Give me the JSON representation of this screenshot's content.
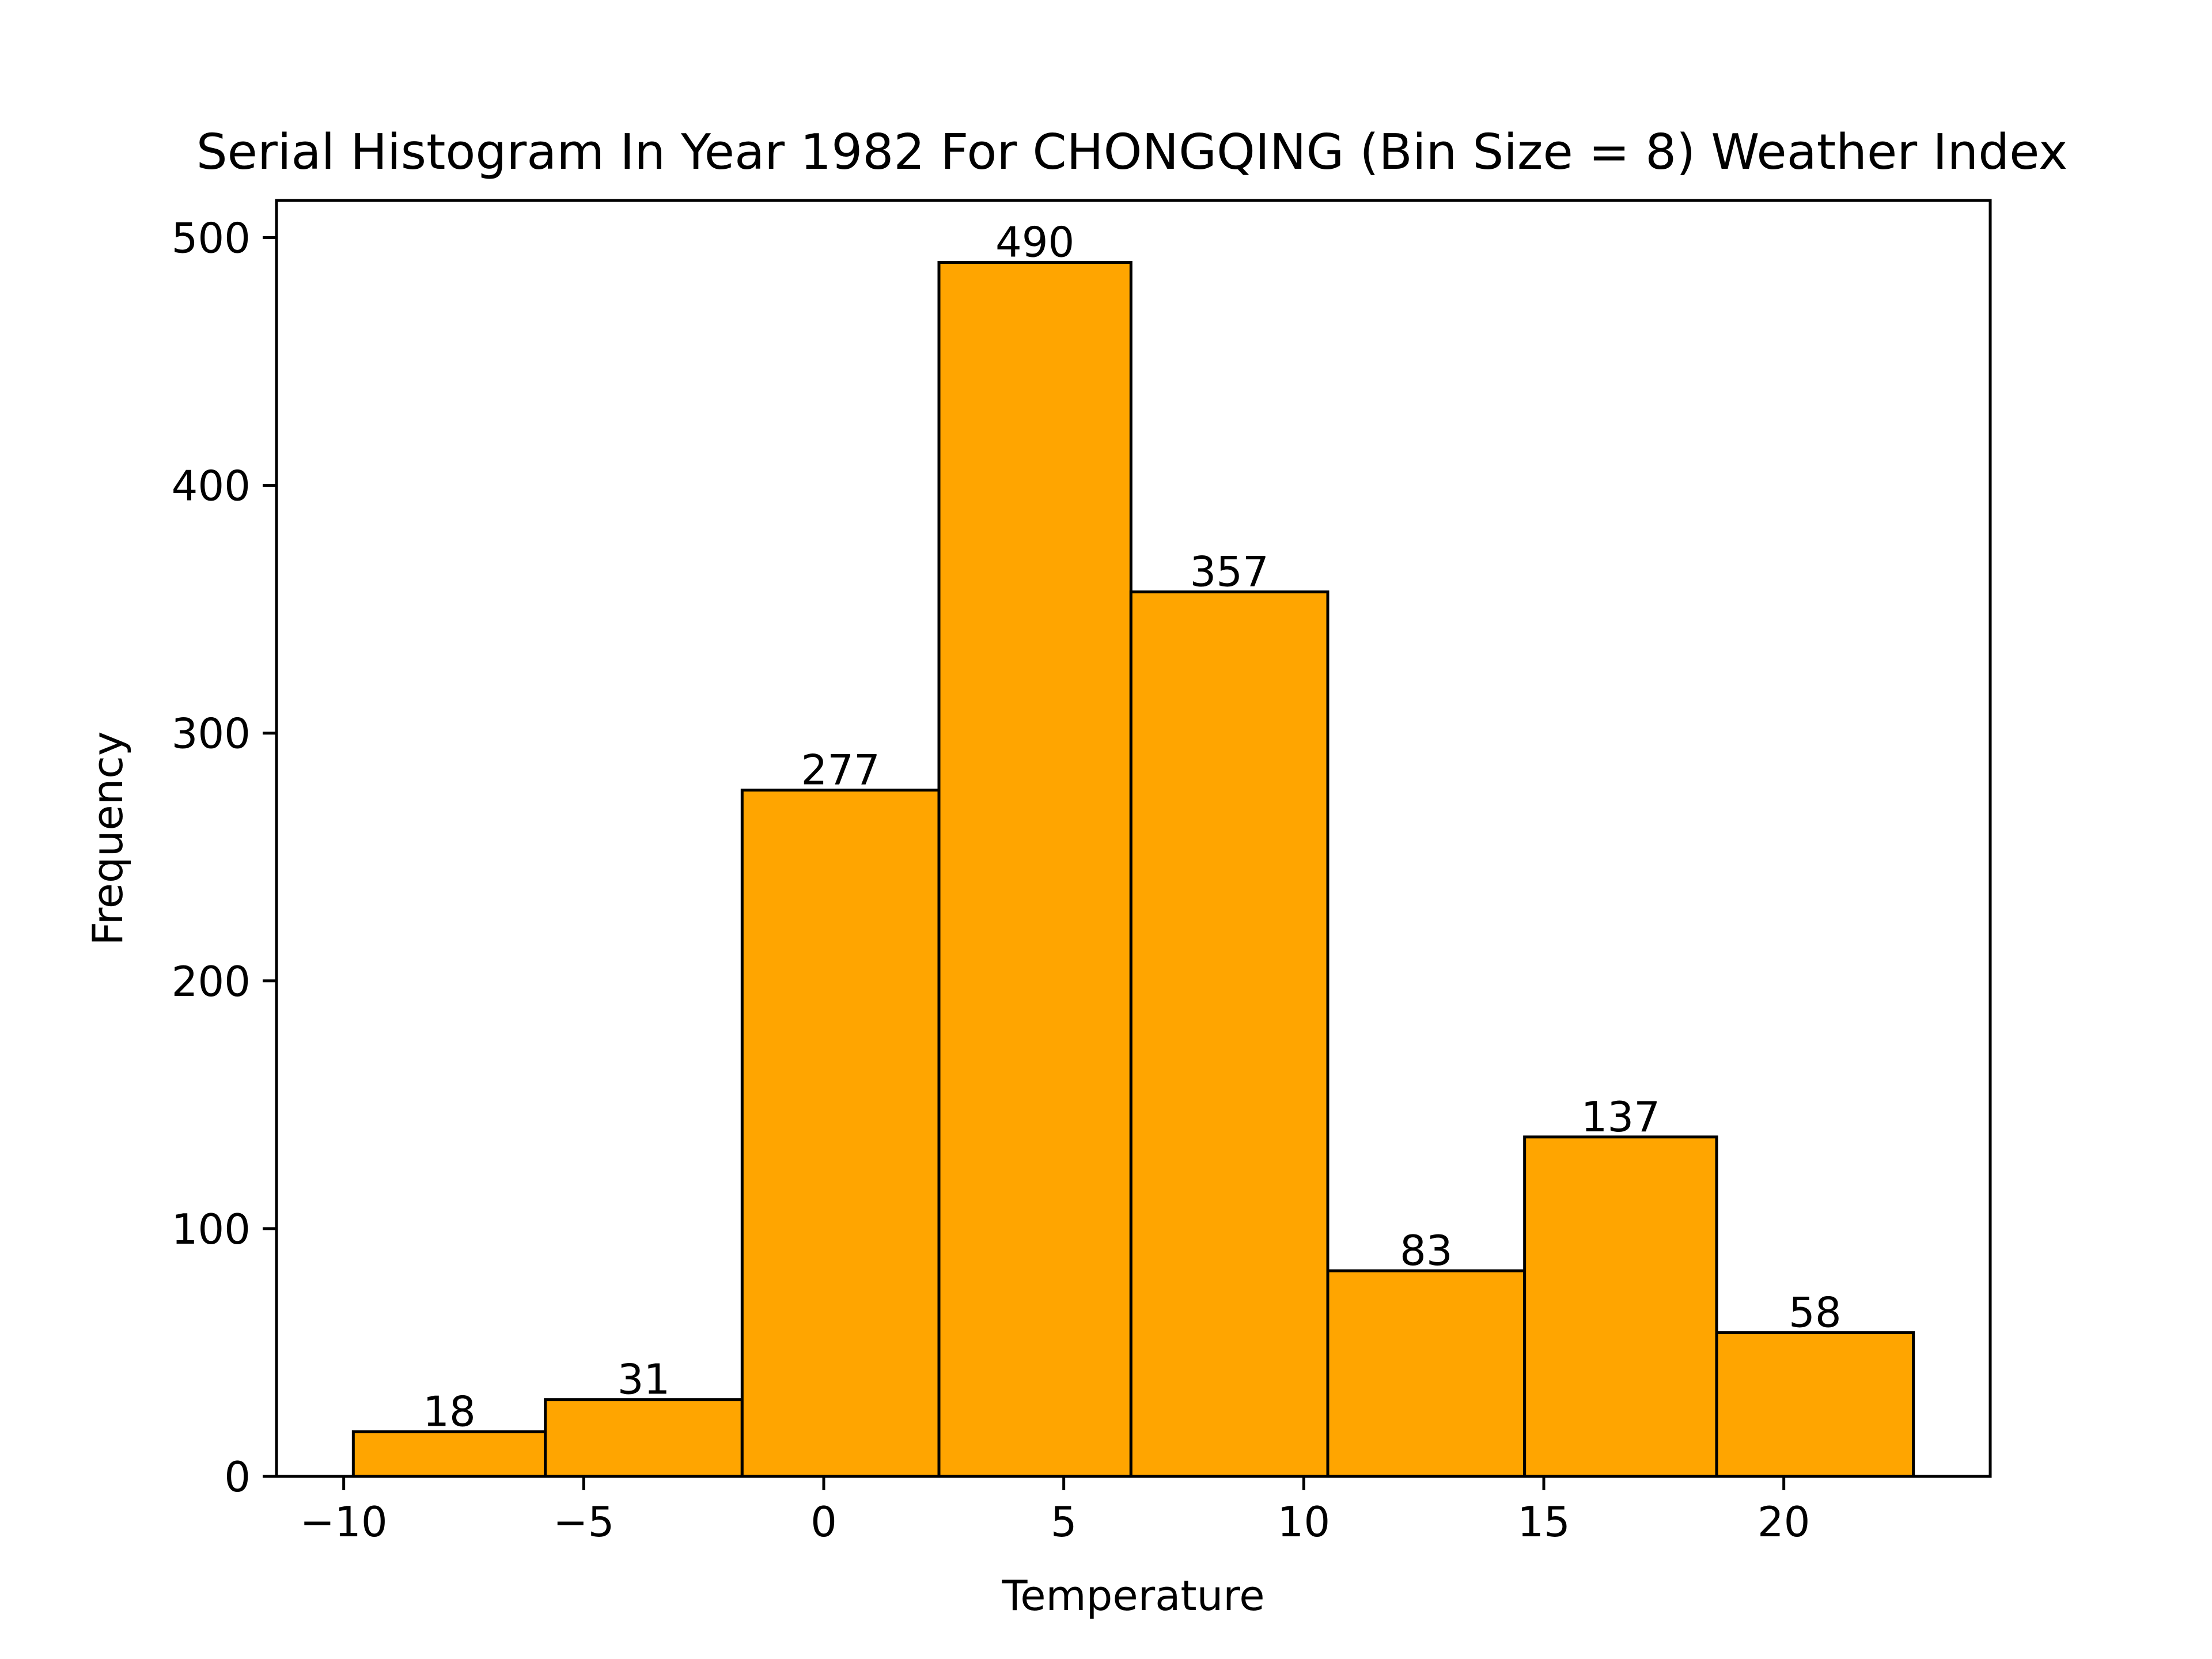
{
  "chart_data": {
    "type": "bar",
    "title": "Serial Histogram In Year 1982 For CHONGQING (Bin Size = 8) Weather Index",
    "xlabel": "Temperature",
    "ylabel": "Frequency",
    "bins": [
      {
        "start": -9.8,
        "end": -5.8,
        "value": 18
      },
      {
        "start": -5.8,
        "end": -1.7,
        "value": 31
      },
      {
        "start": -1.7,
        "end": 2.4,
        "value": 277
      },
      {
        "start": 2.4,
        "end": 6.4,
        "value": 490
      },
      {
        "start": 6.4,
        "end": 10.5,
        "value": 357
      },
      {
        "start": 10.5,
        "end": 14.6,
        "value": 83
      },
      {
        "start": 14.6,
        "end": 18.6,
        "value": 137
      },
      {
        "start": 18.6,
        "end": 22.7,
        "value": 58
      }
    ],
    "xlim": [
      -11.4,
      24.3
    ],
    "ylim": [
      0,
      515
    ],
    "xticks": [
      -10,
      -5,
      0,
      5,
      10,
      15,
      20
    ],
    "xtick_labels": [
      "−10",
      "−5",
      "0",
      "5",
      "10",
      "15",
      "20"
    ],
    "yticks": [
      0,
      100,
      200,
      300,
      400,
      500
    ],
    "ytick_labels": [
      "0",
      "100",
      "200",
      "300",
      "400",
      "500"
    ],
    "bar_color": "#FFA500",
    "edge_color": "#000000",
    "grid": false,
    "legend": false
  }
}
